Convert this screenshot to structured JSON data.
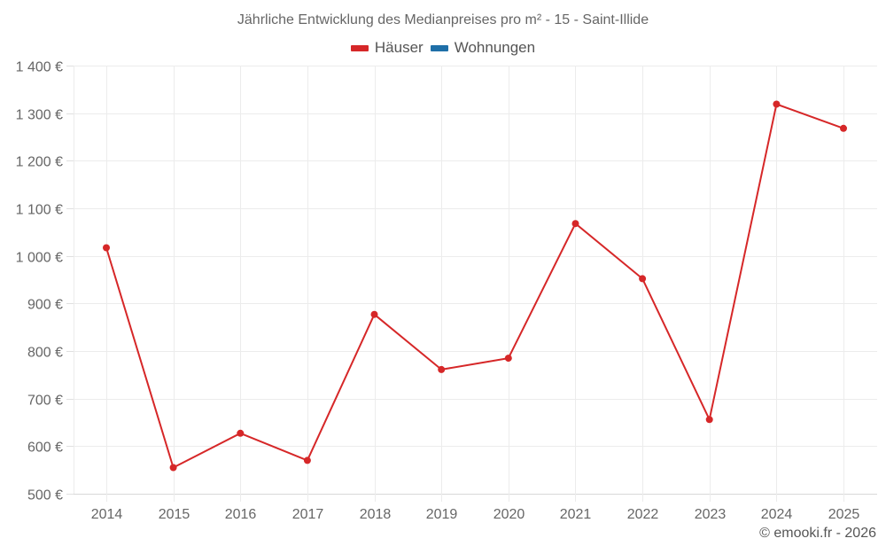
{
  "chart_data": {
    "type": "line",
    "title": "Jährliche Entwicklung des Medianpreises pro m² - 15 - Saint-Illide",
    "xlabel": "",
    "ylabel": "",
    "categories": [
      "2014",
      "2015",
      "2016",
      "2017",
      "2018",
      "2019",
      "2020",
      "2021",
      "2022",
      "2023",
      "2024",
      "2025"
    ],
    "series": [
      {
        "name": "Häuser",
        "color": "#d62728",
        "values": [
          1017,
          555,
          627,
          570,
          877,
          761,
          785,
          1068,
          952,
          656,
          1319,
          1268
        ]
      },
      {
        "name": "Wohnungen",
        "color": "#1f6fa8",
        "values": []
      }
    ],
    "ylim": [
      500,
      1400
    ],
    "yticks": [
      500,
      600,
      700,
      800,
      900,
      1000,
      1100,
      1200,
      1300,
      1400
    ],
    "ytick_labels": [
      "500 €",
      "600 €",
      "700 €",
      "800 €",
      "900 €",
      "1 000 €",
      "1 100 €",
      "1 200 €",
      "1 300 €",
      "1 400 €"
    ],
    "grid": true,
    "legend_position": "top"
  },
  "header": {
    "title": "Jährliche Entwicklung des Medianpreises pro m² - 15 - Saint-Illide"
  },
  "legend": {
    "items": [
      {
        "label": "Häuser",
        "color": "#d62728"
      },
      {
        "label": "Wohnungen",
        "color": "#1f6fa8"
      }
    ]
  },
  "footer": {
    "credit": "© emooki.fr - 2026"
  }
}
